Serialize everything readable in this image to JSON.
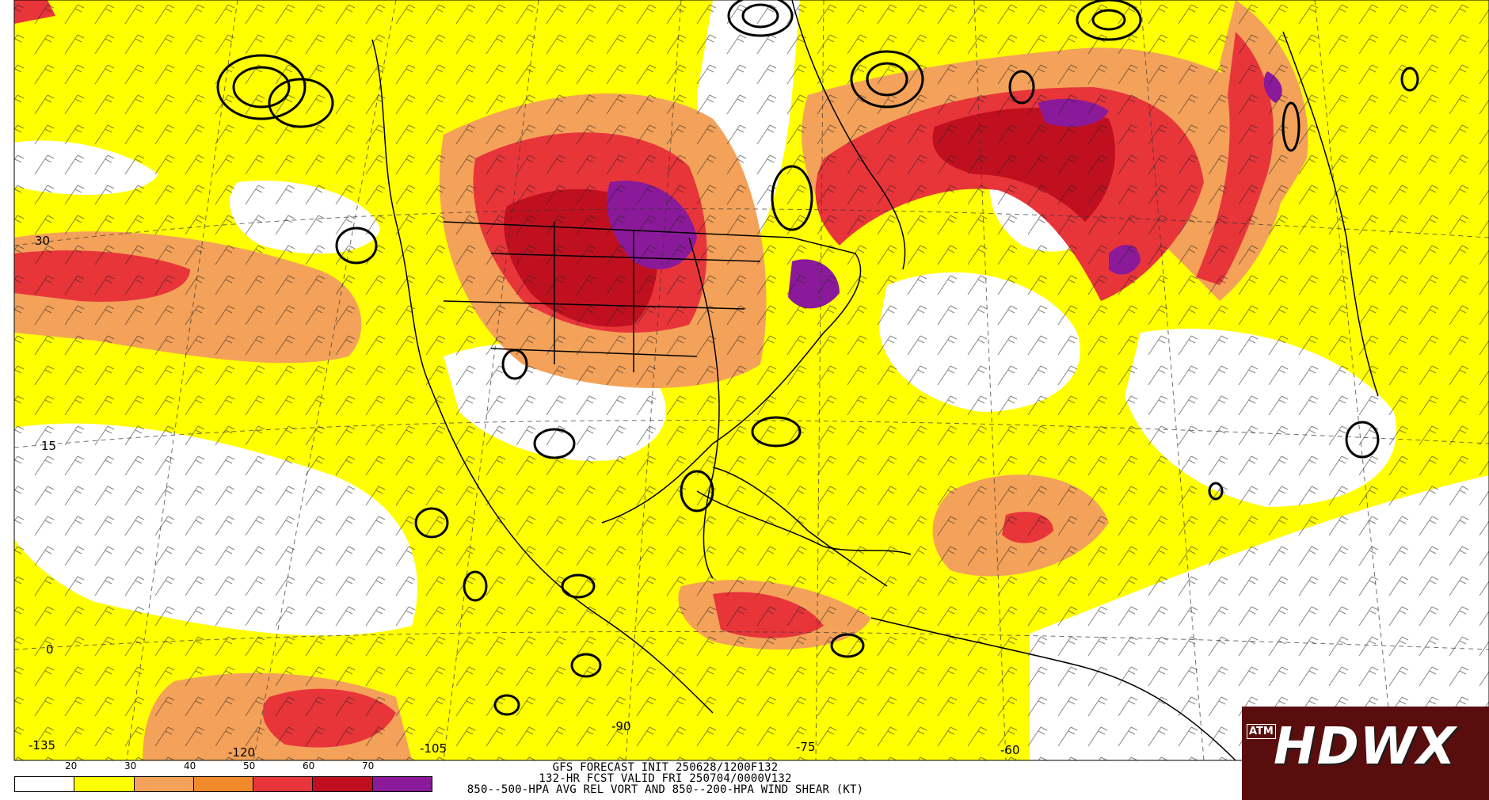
{
  "map": {
    "lat_labels": [
      "30",
      "15",
      "0"
    ],
    "lon_labels": [
      "-135",
      "-120",
      "-105",
      "-90",
      "-75",
      "-60"
    ]
  },
  "caption": {
    "line1": "GFS FORECAST INIT 250628/1200F132",
    "line2": "132-HR FCST VALID FRI 250704/0000V132",
    "line3": "850--500-HPA AVG REL VORT AND 850--200-HPA WIND SHEAR (KT)"
  },
  "colorbar": {
    "labels": [
      "20",
      "30",
      "40",
      "50",
      "60",
      "70"
    ],
    "colors": [
      "#ffffff",
      "#ffff00",
      "#f4a25a",
      "#f08a2a",
      "#e8353a",
      "#c01020",
      "#8b1a9a"
    ]
  },
  "logo": {
    "text": "HDWX",
    "emblem": "ATM"
  }
}
